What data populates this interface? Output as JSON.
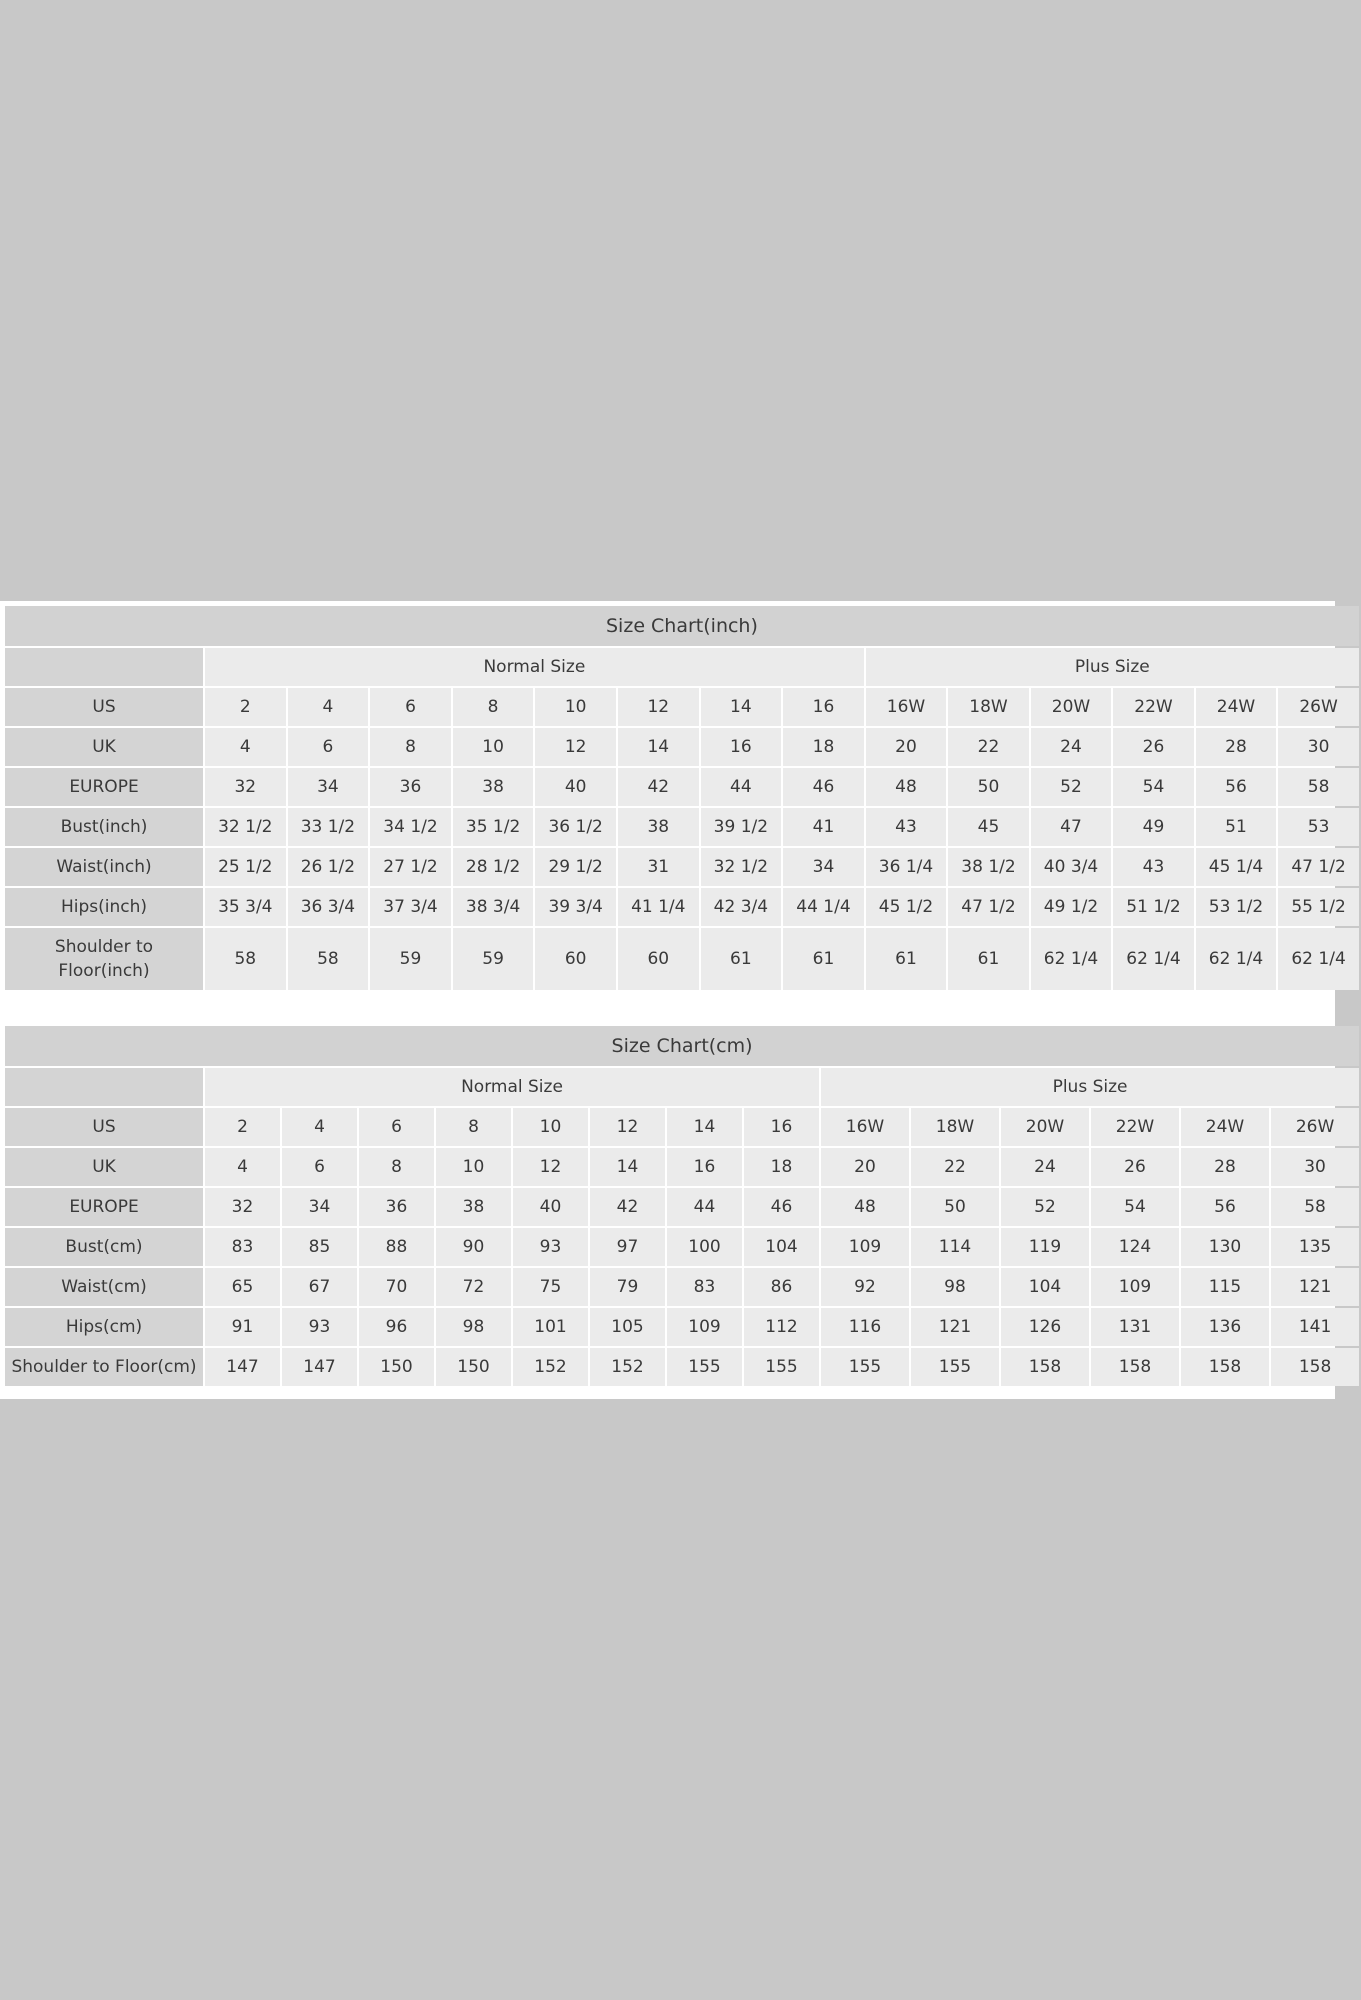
{
  "tables": [
    {
      "title": "Size Chart(inch)",
      "groups": [
        {
          "label": "Normal Size",
          "span": 8
        },
        {
          "label": "Plus Size",
          "span": 6
        }
      ],
      "rows": [
        {
          "label": "US",
          "values": [
            "2",
            "4",
            "6",
            "8",
            "10",
            "12",
            "14",
            "16",
            "16W",
            "18W",
            "20W",
            "22W",
            "24W",
            "26W"
          ]
        },
        {
          "label": "UK",
          "values": [
            "4",
            "6",
            "8",
            "10",
            "12",
            "14",
            "16",
            "18",
            "20",
            "22",
            "24",
            "26",
            "28",
            "30"
          ]
        },
        {
          "label": "EUROPE",
          "values": [
            "32",
            "34",
            "36",
            "38",
            "40",
            "42",
            "44",
            "46",
            "48",
            "50",
            "52",
            "54",
            "56",
            "58"
          ]
        },
        {
          "label": "Bust(inch)",
          "values": [
            "32 1/2",
            "33 1/2",
            "34 1/2",
            "35 1/2",
            "36 1/2",
            "38",
            "39 1/2",
            "41",
            "43",
            "45",
            "47",
            "49",
            "51",
            "53"
          ]
        },
        {
          "label": "Waist(inch)",
          "values": [
            "25 1/2",
            "26 1/2",
            "27 1/2",
            "28 1/2",
            "29 1/2",
            "31",
            "32 1/2",
            "34",
            "36 1/4",
            "38 1/2",
            "40 3/4",
            "43",
            "45 1/4",
            "47 1/2"
          ]
        },
        {
          "label": "Hips(inch)",
          "values": [
            "35 3/4",
            "36 3/4",
            "37 3/4",
            "38 3/4",
            "39 3/4",
            "41 1/4",
            "42 3/4",
            "44 1/4",
            "45 1/2",
            "47 1/2",
            "49 1/2",
            "51 1/2",
            "53 1/2",
            "55 1/2"
          ]
        },
        {
          "label": "Shoulder to Floor(inch)",
          "values": [
            "58",
            "58",
            "59",
            "59",
            "60",
            "60",
            "61",
            "61",
            "61",
            "61",
            "62 1/4",
            "62 1/4",
            "62 1/4",
            "62 1/4"
          ]
        }
      ]
    },
    {
      "title": "Size Chart(cm)",
      "groups": [
        {
          "label": "Normal Size",
          "span": 8
        },
        {
          "label": "Plus Size",
          "span": 6
        }
      ],
      "rows": [
        {
          "label": "US",
          "values": [
            "2",
            "4",
            "6",
            "8",
            "10",
            "12",
            "14",
            "16",
            "16W",
            "18W",
            "20W",
            "22W",
            "24W",
            "26W"
          ]
        },
        {
          "label": "UK",
          "values": [
            "4",
            "6",
            "8",
            "10",
            "12",
            "14",
            "16",
            "18",
            "20",
            "22",
            "24",
            "26",
            "28",
            "30"
          ]
        },
        {
          "label": "EUROPE",
          "values": [
            "32",
            "34",
            "36",
            "38",
            "40",
            "42",
            "44",
            "46",
            "48",
            "50",
            "52",
            "54",
            "56",
            "58"
          ]
        },
        {
          "label": "Bust(cm)",
          "values": [
            "83",
            "85",
            "88",
            "90",
            "93",
            "97",
            "100",
            "104",
            "109",
            "114",
            "119",
            "124",
            "130",
            "135"
          ]
        },
        {
          "label": "Waist(cm)",
          "values": [
            "65",
            "67",
            "70",
            "72",
            "75",
            "79",
            "83",
            "86",
            "92",
            "98",
            "104",
            "109",
            "115",
            "121"
          ]
        },
        {
          "label": "Hips(cm)",
          "values": [
            "91",
            "93",
            "96",
            "98",
            "101",
            "105",
            "109",
            "112",
            "116",
            "121",
            "126",
            "131",
            "136",
            "141"
          ]
        },
        {
          "label": "Shoulder to Floor(cm)",
          "values": [
            "147",
            "147",
            "150",
            "150",
            "152",
            "152",
            "155",
            "155",
            "155",
            "155",
            "158",
            "158",
            "158",
            "158"
          ]
        }
      ]
    }
  ]
}
